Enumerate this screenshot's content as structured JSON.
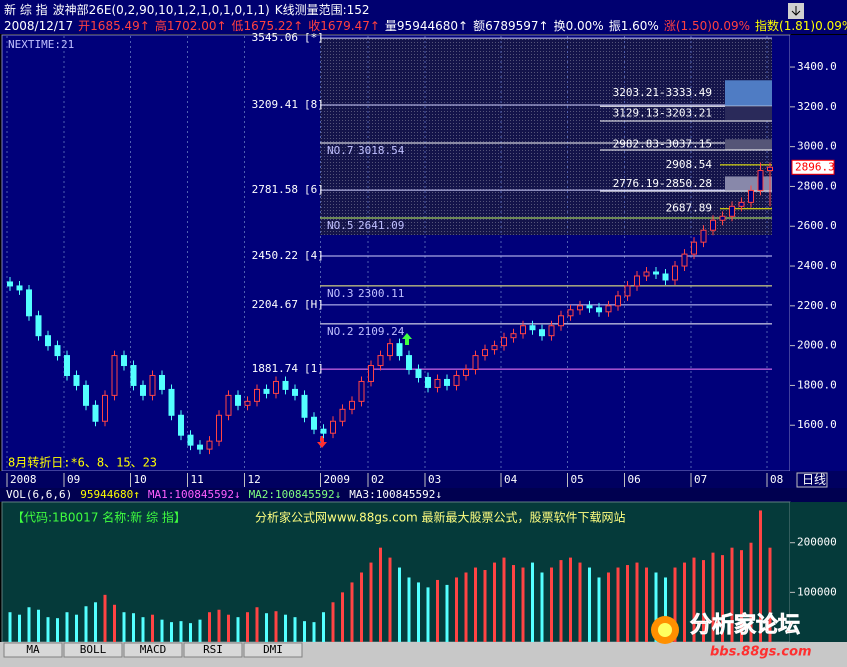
{
  "header": {
    "line1": [
      {
        "text": "新 综 指",
        "color": "#ffffff"
      },
      {
        "text": "波神部26E(0,2,90,10,1,2,1,0,1,0,1,1)",
        "color": "#ffffff"
      },
      {
        "text": "K线测量范围:152",
        "color": "#ffffff"
      }
    ],
    "line2": [
      {
        "text": "2008/12/17",
        "color": "#ffffff"
      },
      {
        "text": "开1685.49↑",
        "color": "#ff4040"
      },
      {
        "text": "高1702.00↑",
        "color": "#ff4040"
      },
      {
        "text": "低1675.22↑",
        "color": "#ff4040"
      },
      {
        "text": "收1679.47↑",
        "color": "#ff4040"
      },
      {
        "text": "量95944680↑",
        "color": "#ffffff"
      },
      {
        "text": "额6789597↑",
        "color": "#ffffff"
      },
      {
        "text": "换0.00%",
        "color": "#ffffff"
      },
      {
        "text": "振1.60%",
        "color": "#ffffff"
      },
      {
        "text": "涨(1.50)0.09%",
        "color": "#ff4040"
      },
      {
        "text": "指数(1.81)0.09%",
        "color": "#ffff00"
      }
    ]
  },
  "chart_data": [
    {
      "type": "candlestick",
      "categories": [
        "2008",
        null,
        null,
        null,
        null,
        null,
        "09",
        null,
        null,
        null,
        null,
        null,
        null,
        "10",
        null,
        null,
        null,
        null,
        null,
        "11",
        null,
        null,
        null,
        null,
        null,
        "12",
        null,
        null,
        null,
        null,
        null,
        null,
        null,
        "2009",
        null,
        null,
        null,
        null,
        "02",
        null,
        null,
        null,
        null,
        null,
        "03",
        null,
        null,
        null,
        null,
        null,
        null,
        null,
        "04",
        null,
        null,
        null,
        null,
        null,
        null,
        "05",
        null,
        null,
        null,
        null,
        null,
        "06",
        null,
        null,
        null,
        null,
        null,
        null,
        "07",
        null,
        null,
        null,
        null,
        null,
        null,
        null,
        "08"
      ],
      "open": [
        2320,
        2300,
        2280,
        2150,
        2050,
        2000,
        1950,
        1850,
        1800,
        1700,
        1620,
        1750,
        1950,
        1900,
        1800,
        1750,
        1850,
        1780,
        1650,
        1550,
        1500,
        1480,
        1520,
        1650,
        1750,
        1700,
        1720,
        1780,
        1760,
        1820,
        1780,
        1750,
        1640,
        1580,
        1560,
        1620,
        1680,
        1720,
        1820,
        1900,
        1950,
        2010,
        1950,
        1880,
        1840,
        1790,
        1830,
        1800,
        1850,
        1880,
        1950,
        1980,
        2000,
        2040,
        2060,
        2100,
        2080,
        2050,
        2100,
        2150,
        2180,
        2200,
        2190,
        2170,
        2200,
        2250,
        2300,
        2350,
        2370,
        2360,
        2330,
        2400,
        2460,
        2520,
        2580,
        2630,
        2650,
        2700,
        2720,
        2780,
        2880
      ],
      "high": [
        2345,
        2325,
        2305,
        2175,
        2075,
        2025,
        1975,
        1875,
        1825,
        1725,
        1775,
        1975,
        1975,
        1925,
        1825,
        1875,
        1875,
        1805,
        1675,
        1575,
        1525,
        1545,
        1675,
        1775,
        1775,
        1745,
        1805,
        1805,
        1845,
        1845,
        1805,
        1775,
        1665,
        1605,
        1645,
        1705,
        1745,
        1845,
        1925,
        1975,
        2035,
        2035,
        1975,
        1905,
        1865,
        1855,
        1855,
        1875,
        1905,
        1975,
        2005,
        2025,
        2065,
        2085,
        2125,
        2125,
        2105,
        2125,
        2175,
        2205,
        2225,
        2225,
        2215,
        2225,
        2275,
        2325,
        2375,
        2395,
        2395,
        2385,
        2425,
        2485,
        2545,
        2605,
        2655,
        2675,
        2725,
        2745,
        2805,
        2920,
        2920
      ],
      "low": [
        2275,
        2255,
        2125,
        2025,
        1975,
        1925,
        1825,
        1775,
        1675,
        1595,
        1595,
        1725,
        1875,
        1775,
        1725,
        1725,
        1755,
        1625,
        1525,
        1475,
        1455,
        1455,
        1495,
        1625,
        1675,
        1675,
        1695,
        1735,
        1735,
        1755,
        1725,
        1615,
        1555,
        1535,
        1535,
        1595,
        1655,
        1695,
        1795,
        1875,
        1925,
        1925,
        1855,
        1815,
        1765,
        1765,
        1775,
        1775,
        1825,
        1855,
        1925,
        1955,
        1975,
        2015,
        2035,
        2055,
        2025,
        2025,
        2075,
        2125,
        2155,
        2165,
        2145,
        2145,
        2175,
        2225,
        2275,
        2325,
        2335,
        2305,
        2305,
        2375,
        2435,
        2495,
        2555,
        2605,
        2625,
        2675,
        2695,
        2755,
        2700
      ],
      "close": [
        2300,
        2280,
        2150,
        2050,
        2000,
        1950,
        1850,
        1800,
        1700,
        1620,
        1750,
        1950,
        1900,
        1800,
        1750,
        1850,
        1780,
        1650,
        1550,
        1500,
        1480,
        1520,
        1650,
        1750,
        1700,
        1720,
        1780,
        1760,
        1820,
        1780,
        1750,
        1640,
        1580,
        1560,
        1620,
        1680,
        1720,
        1820,
        1900,
        1950,
        2010,
        1950,
        1880,
        1840,
        1790,
        1830,
        1800,
        1850,
        1880,
        1950,
        1980,
        2000,
        2040,
        2060,
        2100,
        2080,
        2050,
        2100,
        2150,
        2180,
        2200,
        2190,
        2170,
        2200,
        2250,
        2300,
        2350,
        2370,
        2360,
        2330,
        2400,
        2460,
        2520,
        2580,
        2630,
        2650,
        2700,
        2720,
        2780,
        2880,
        2896.3
      ],
      "colors": {
        "up": "#ff4444",
        "down": "#54ffff"
      },
      "ylim": [
        1370,
        3556
      ],
      "yticks": [
        {
          "value": 1600,
          "label": "1600.0"
        },
        {
          "value": 1800,
          "label": "1800.0"
        },
        {
          "value": 2000,
          "label": "2000.0"
        },
        {
          "value": 2200,
          "label": "2200.0"
        },
        {
          "value": 2400,
          "label": "2400.0"
        },
        {
          "value": 2600,
          "label": "2600.0"
        },
        {
          "value": 2800,
          "label": "2800.0"
        },
        {
          "value": 3000,
          "label": "3000.0"
        },
        {
          "value": 3200,
          "label": "3200.0"
        },
        {
          "value": 3400,
          "label": "3400.0"
        }
      ],
      "nextime": "NEXTIME:21",
      "turning": "8月转折日:*6、8、15、23",
      "period": "日线",
      "levels": [
        {
          "value": 3545.06,
          "tag": "[*]"
        },
        {
          "value": 3209.41,
          "tag": "[8]"
        },
        {
          "value": 2781.58,
          "tag": "[6]"
        },
        {
          "value": 2450.22,
          "tag": "[4]"
        },
        {
          "value": 2204.67,
          "tag": "[H]"
        },
        {
          "value": 1881.74,
          "tag": "[1]"
        }
      ],
      "projections": [
        {
          "name": "NO.7",
          "value": 3018.54,
          "color": "#ffffff"
        },
        {
          "name": "NO.5",
          "value": 2641.09,
          "color": "#c8ff64"
        },
        {
          "name": "NO.3",
          "value": 2300.11,
          "color": "#ffff80"
        },
        {
          "name": "NO.2",
          "value": 2109.24,
          "color": "#ffffff"
        }
      ],
      "ranges": [
        {
          "low": 3203.21,
          "high": 3333.49,
          "label": "3203.21-3333.49",
          "fill": "#4f7cc4"
        },
        {
          "low": 3129.13,
          "high": 3203.21,
          "label": "3129.13-3203.21",
          "fill": "#2a2a5a"
        },
        {
          "low": 2982.83,
          "high": 3037.15,
          "label": "2982.83-3037.15",
          "fill": "#555577"
        },
        {
          "low": 2776.19,
          "high": 2850.28,
          "label": "2776.19-2850.28",
          "fill": "#8888aa"
        }
      ],
      "marks": [
        {
          "value": 2908.54
        },
        {
          "value": 2687.89
        }
      ]
    },
    {
      "type": "bar",
      "header": [
        {
          "text": "VOL(6,6,6)",
          "color": "#ffffff"
        },
        {
          "text": "95944680↑",
          "color": "#ffff00"
        },
        {
          "text": "MA1:100845592↓",
          "color": "#ff60ff"
        },
        {
          "text": "MA2:100845592↓",
          "color": "#80ff80"
        },
        {
          "text": "MA3:100845592↓",
          "color": "#ffffff"
        }
      ],
      "values": [
        60000,
        55000,
        70000,
        65000,
        50000,
        48000,
        60000,
        55000,
        72000,
        80000,
        95000,
        75000,
        60000,
        58000,
        50000,
        55000,
        45000,
        40000,
        42000,
        38000,
        45000,
        60000,
        65000,
        55000,
        50000,
        60000,
        70000,
        58000,
        62000,
        55000,
        50000,
        42000,
        40000,
        60000,
        80000,
        100000,
        120000,
        140000,
        160000,
        190000,
        170000,
        150000,
        130000,
        120000,
        110000,
        125000,
        115000,
        130000,
        140000,
        150000,
        145000,
        160000,
        170000,
        155000,
        150000,
        160000,
        140000,
        150000,
        165000,
        170000,
        160000,
        150000,
        130000,
        140000,
        150000,
        155000,
        160000,
        150000,
        140000,
        130000,
        150000,
        160000,
        170000,
        165000,
        180000,
        175000,
        190000,
        185000,
        200000,
        265000,
        190000
      ],
      "ylim": [
        0,
        280000
      ],
      "yticks": [
        100000,
        200000
      ]
    }
  ],
  "watermark": {
    "code": "【代码:1B0017 名称:新 综 指】",
    "site": "分析家公式网www.88gs.com 最新最大股票公式，股票软件下载网站"
  },
  "logo": {
    "title": "分析家论坛",
    "url": "bbs.88gs.com"
  },
  "tabs": [
    "MA",
    "BOLL",
    "MACD",
    "RSI",
    "DMI"
  ]
}
